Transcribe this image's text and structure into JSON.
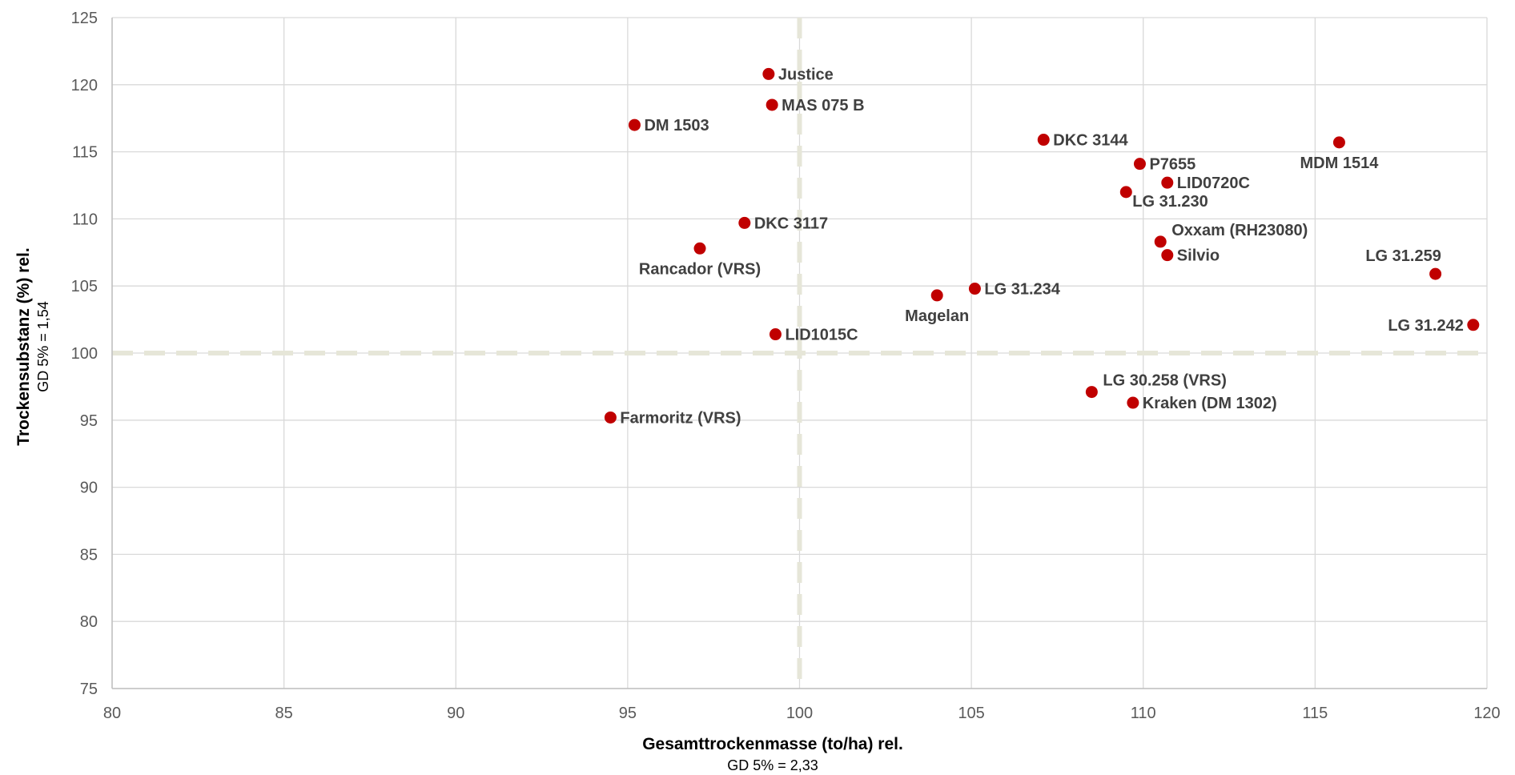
{
  "chart_data": {
    "type": "scatter",
    "title": "",
    "xlabel": "Gesamttrockenmasse (to/ha) rel.",
    "xlabel_sub": "GD 5% = 2,33",
    "ylabel": "Trockensubstanz (%) rel.",
    "ylabel_sub": "GD 5% = 1,54",
    "xlim": [
      80,
      120
    ],
    "ylim": [
      75,
      125
    ],
    "x_ticks": [
      "80",
      "85",
      "90",
      "95",
      "100",
      "105",
      "110",
      "115",
      "120"
    ],
    "y_ticks": [
      "75",
      "80",
      "85",
      "90",
      "95",
      "100",
      "105",
      "110",
      "115",
      "120",
      "125"
    ],
    "grid": true,
    "legend": "none",
    "reference_lines": {
      "x": 100,
      "y": 100
    },
    "colors": {
      "point": "#c00000",
      "grid": "#d9d9d9",
      "reference": "#e6e6d8",
      "axis": "#bfbfbf"
    },
    "points": [
      {
        "label": "Justice",
        "x": 99.1,
        "y": 120.8,
        "pos": "right"
      },
      {
        "label": "MAS 075 B",
        "x": 99.2,
        "y": 118.5,
        "pos": "right"
      },
      {
        "label": "DM 1503",
        "x": 95.2,
        "y": 117.0,
        "pos": "right"
      },
      {
        "label": "DKC 3144",
        "x": 107.1,
        "y": 115.9,
        "pos": "right"
      },
      {
        "label": "MDM 1514",
        "x": 115.7,
        "y": 115.7,
        "pos": "below"
      },
      {
        "label": "P7655",
        "x": 109.9,
        "y": 114.1,
        "pos": "right"
      },
      {
        "label": "LID0720C",
        "x": 110.7,
        "y": 112.7,
        "pos": "right"
      },
      {
        "label": "LG 31.230",
        "x": 109.5,
        "y": 112.0,
        "pos": "below-right"
      },
      {
        "label": "DKC 3117",
        "x": 98.4,
        "y": 109.7,
        "pos": "right"
      },
      {
        "label": "Oxxam (RH23080)",
        "x": 110.5,
        "y": 108.3,
        "pos": "above-right"
      },
      {
        "label": "Rancador (VRS)",
        "x": 97.1,
        "y": 107.8,
        "pos": "below"
      },
      {
        "label": "Silvio",
        "x": 110.7,
        "y": 107.3,
        "pos": "right"
      },
      {
        "label": "LG 31.259",
        "x": 118.5,
        "y": 105.9,
        "pos": "above"
      },
      {
        "label": "LG 31.234",
        "x": 105.1,
        "y": 104.8,
        "pos": "right"
      },
      {
        "label": "Magelan",
        "x": 104.0,
        "y": 104.3,
        "pos": "below"
      },
      {
        "label": "LG 31.242",
        "x": 119.6,
        "y": 102.1,
        "pos": "left"
      },
      {
        "label": "LID1015C",
        "x": 99.3,
        "y": 101.4,
        "pos": "right"
      },
      {
        "label": "LG 30.258 (VRS)",
        "x": 108.5,
        "y": 97.1,
        "pos": "above-right"
      },
      {
        "label": "Kraken (DM 1302)",
        "x": 109.7,
        "y": 96.3,
        "pos": "right"
      },
      {
        "label": "Farmoritz (VRS)",
        "x": 94.5,
        "y": 95.2,
        "pos": "right"
      }
    ]
  }
}
